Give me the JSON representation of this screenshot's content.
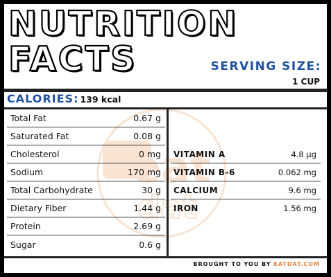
{
  "header": {
    "title_line1": "NUTRITION",
    "title_line2": "FACTS",
    "serving_label": "SERVING SIZE:",
    "serving_value": "1 CUP"
  },
  "calories": {
    "label": "CALORIES:",
    "value": "139 kcal"
  },
  "nutrients": [
    {
      "name": "Total Fat",
      "value": "0.67 g"
    },
    {
      "name": "Saturated Fat",
      "value": "0.08 g"
    },
    {
      "name": "Cholesterol",
      "value": "0 mg"
    },
    {
      "name": "Sodium",
      "value": "170 mg"
    },
    {
      "name": "Total Carbohydrate",
      "value": "30 g"
    },
    {
      "name": "Dietary Fiber",
      "value": "1.44 g"
    },
    {
      "name": "Protein",
      "value": "2.69 g"
    },
    {
      "name": "Sugar",
      "value": "0.6 g"
    }
  ],
  "vitamins": [
    {
      "name": "VITAMIN A",
      "value": "4.8 μg"
    },
    {
      "name": "VITAMIN B-6",
      "value": "0.062 mg"
    },
    {
      "name": "CALCIUM",
      "value": "9.6 mg"
    },
    {
      "name": "IRON",
      "value": "1.56 mg"
    }
  ],
  "footer": {
    "prefix": "BROUGHT TO YOU BY",
    "brand": "EATDAT.COM"
  },
  "watermark_text": {
    "line1": "eat",
    "line2": "dat"
  },
  "colors": {
    "accent_blue": "#1f4fa0",
    "brand_orange": "#e8823a",
    "border": "#222222"
  }
}
